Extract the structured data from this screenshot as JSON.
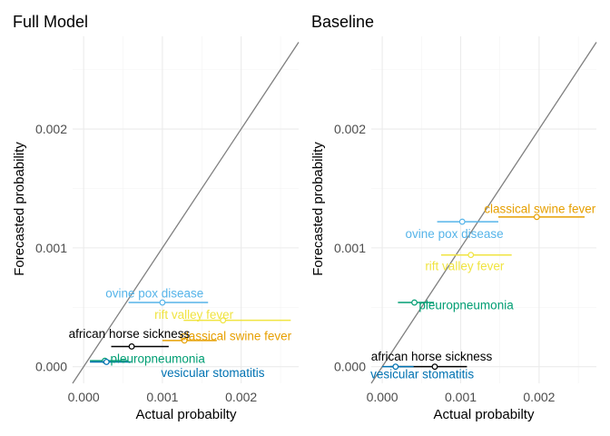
{
  "chart_data": [
    {
      "type": "scatter",
      "title": "Full Model",
      "xlabel": "Actual probabilty",
      "ylabel": "Forecasted probability",
      "xlim": [
        -0.00014,
        0.00273
      ],
      "ylim": [
        -0.00014,
        0.00278
      ],
      "x_ticks": [
        0.0,
        0.001,
        0.002
      ],
      "x_tick_labels": [
        "0.000",
        "0.001",
        "0.002"
      ],
      "y_ticks": [
        0.0,
        0.001,
        0.002
      ],
      "y_tick_labels": [
        "0.000",
        "0.001",
        "0.002"
      ],
      "grid": true,
      "reference_line": "y = x",
      "series": [
        {
          "name": "ovine pox disease",
          "x": 0.001,
          "y": 0.00054,
          "x_low": 0.00057,
          "x_high": 0.00158,
          "label_x": 0.0009,
          "label_y": 0.00062,
          "color": "#56B4E9",
          "anchor": "middle"
        },
        {
          "name": "rift valley fever",
          "x": 0.00177,
          "y": 0.00039,
          "x_low": 0.00127,
          "x_high": 0.00263,
          "label_x": 0.0014,
          "label_y": 0.00044,
          "color": "#F0E442",
          "anchor": "middle"
        },
        {
          "name": "classical swine fever",
          "x": 0.00128,
          "y": 0.00022,
          "x_low": 0.001,
          "x_high": 0.00169,
          "label_x": 0.00193,
          "label_y": 0.00026,
          "color": "#E69F00",
          "anchor": "middle"
        },
        {
          "name": "african horse sickness",
          "x": 0.00061,
          "y": 0.00017,
          "x_low": 0.00035,
          "x_high": 0.00108,
          "label_x": 0.00058,
          "label_y": 0.00028,
          "color": "#000000",
          "anchor": "middle"
        },
        {
          "name": "pleuropneumonia",
          "x": 0.00027,
          "y": 5e-05,
          "x_low": 8e-05,
          "x_high": 0.00056,
          "label_x": 0.00094,
          "label_y": 7e-05,
          "color": "#009E73",
          "anchor": "middle"
        },
        {
          "name": "vesicular stomatitis",
          "x": 0.00029,
          "y": 4e-05,
          "x_low": 8e-05,
          "x_high": 0.0006,
          "label_x": 0.00164,
          "label_y": -5e-05,
          "color": "#0072B2",
          "anchor": "middle"
        }
      ]
    },
    {
      "type": "scatter",
      "title": "Baseline",
      "xlabel": "Actual probabilty",
      "ylabel": "Forecasted probability",
      "xlim": [
        -0.00014,
        0.00273
      ],
      "ylim": [
        -0.00014,
        0.00278
      ],
      "x_ticks": [
        0.0,
        0.001,
        0.002
      ],
      "x_tick_labels": [
        "0.000",
        "0.001",
        "0.002"
      ],
      "y_ticks": [
        0.0,
        0.001,
        0.002
      ],
      "y_tick_labels": [
        "0.000",
        "0.001",
        "0.002"
      ],
      "grid": true,
      "reference_line": "y = x",
      "series": [
        {
          "name": "classical swine fever",
          "x": 0.00197,
          "y": 0.00126,
          "x_low": 0.00148,
          "x_high": 0.00258,
          "label_x": 0.00201,
          "label_y": 0.00133,
          "color": "#E69F00",
          "anchor": "middle"
        },
        {
          "name": "ovine pox disease",
          "x": 0.00102,
          "y": 0.00122,
          "x_low": 0.0007,
          "x_high": 0.00148,
          "label_x": 0.00092,
          "label_y": 0.00112,
          "color": "#56B4E9",
          "anchor": "middle"
        },
        {
          "name": "rift valley fever",
          "x": 0.00113,
          "y": 0.00094,
          "x_low": 0.00075,
          "x_high": 0.00165,
          "label_x": 0.00105,
          "label_y": 0.00085,
          "color": "#F0E442",
          "anchor": "middle"
        },
        {
          "name": "pleuropneumonia",
          "x": 0.00041,
          "y": 0.00054,
          "x_low": 0.0002,
          "x_high": 0.00066,
          "label_x": 0.00107,
          "label_y": 0.00052,
          "color": "#009E73",
          "anchor": "middle"
        },
        {
          "name": "african horse sickness",
          "x": 0.00067,
          "y": 0.0,
          "x_low": 0.0001,
          "x_high": 0.00108,
          "label_x": 0.00063,
          "label_y": 9e-05,
          "color": "#000000",
          "anchor": "middle"
        },
        {
          "name": "vesicular stomatitis",
          "x": 0.00017,
          "y": 0.0,
          "x_low": 0.0,
          "x_high": 0.0004,
          "label_x": 0.00051,
          "label_y": -6e-05,
          "color": "#0072B2",
          "anchor": "middle"
        }
      ]
    }
  ]
}
